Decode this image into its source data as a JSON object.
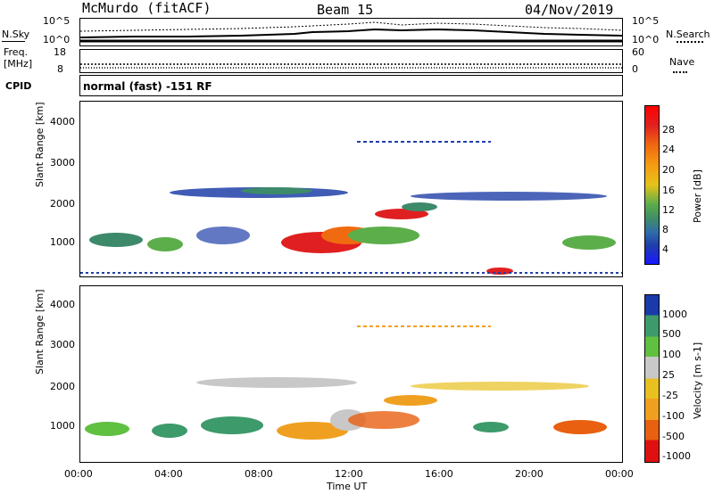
{
  "header": {
    "station": "McMurdo (fitACF)",
    "beam": "Beam 15",
    "date": "04/Nov/2019"
  },
  "noise_panel": {
    "left_label": "N.Sky",
    "right_label": "N.Search",
    "left_ticks": [
      "10^5",
      "10^0"
    ],
    "right_ticks": [
      "10^5",
      "10^0"
    ]
  },
  "freq_panel": {
    "left_label": "Freq.",
    "left_unit": "[MHz]",
    "left_ticks": [
      "18",
      "8"
    ],
    "right_label": "Nave",
    "right_ticks": [
      "60",
      "0"
    ]
  },
  "cpid_panel": {
    "label": "CPID",
    "text": "normal (fast) -151 RF"
  },
  "chart_data": [
    {
      "type": "heatmap",
      "name": "power",
      "ylabel": "Slant Range [km]",
      "yticks": [
        "1000",
        "2000",
        "3000",
        "4000"
      ],
      "ylim": [
        180,
        4600
      ],
      "xlim": [
        0,
        24
      ],
      "colorbar": {
        "label": "Power [dB]",
        "ticks": [
          "4",
          "8",
          "12",
          "16",
          "20",
          "24",
          "28"
        ],
        "colors": [
          "#1818ff",
          "#1f3fa8",
          "#2f6cab",
          "#3d8a6a",
          "#5cae4a",
          "#e6c21a",
          "#f59a12",
          "#f06a10",
          "#e02020",
          "#ff0000"
        ]
      }
    },
    {
      "type": "heatmap",
      "name": "velocity",
      "ylabel": "Slant Range [km]",
      "yticks": [
        "1000",
        "2000",
        "3000",
        "4000"
      ],
      "ylim": [
        180,
        4600
      ],
      "xlim": [
        0,
        24
      ],
      "colorbar": {
        "label": "Velocity [m s-1]",
        "ticks": [
          "1000",
          "500",
          "100",
          "25",
          "-25",
          "-100",
          "-500",
          "-1000"
        ],
        "colors": [
          "#1a3aaa",
          "#3d9a6a",
          "#60c040",
          "#c8c8c8",
          "#e8c020",
          "#f0a020",
          "#e86010",
          "#e01010"
        ]
      }
    }
  ],
  "xaxis": {
    "ticks": [
      "00:00",
      "04:00",
      "08:00",
      "12:00",
      "16:00",
      "20:00",
      "00:00"
    ],
    "label": "Time UT"
  }
}
